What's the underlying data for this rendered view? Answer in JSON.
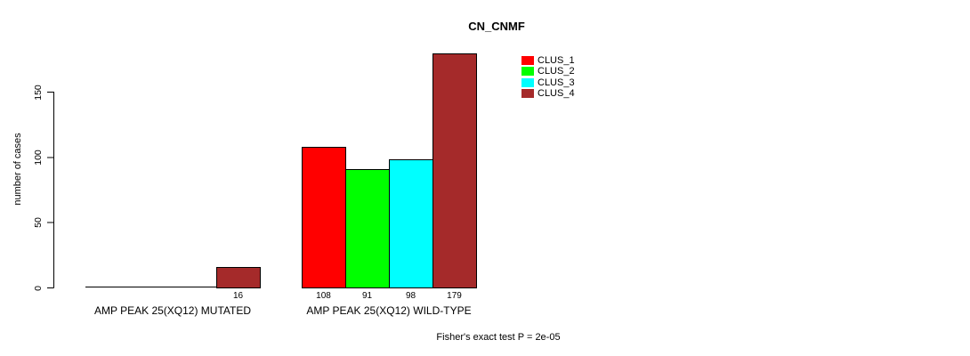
{
  "page": {
    "background_color": "#FFFFFF",
    "text_color": "#000000",
    "axis_color": "#000000"
  },
  "chart_data": {
    "type": "bar",
    "title": "CN_CNMF",
    "xlabel": "",
    "ylabel": "number of cases",
    "ylim": [
      0,
      150
    ],
    "yticks": [
      0,
      50,
      100,
      150
    ],
    "grid": false,
    "legend_position": "top-right-inside",
    "value_label_rule": "nonzero-only",
    "categories": [
      "AMP PEAK 25(XQ12) MUTATED",
      "AMP PEAK 25(XQ12) WILD-TYPE"
    ],
    "series": [
      {
        "name": "CLUS_1",
        "color": "#FF0000",
        "values": [
          0,
          108
        ]
      },
      {
        "name": "CLUS_2",
        "color": "#00FF00",
        "values": [
          0,
          91
        ]
      },
      {
        "name": "CLUS_3",
        "color": "#00FFFF",
        "values": [
          0,
          98
        ]
      },
      {
        "name": "CLUS_4",
        "color": "#A52A2A",
        "values": [
          16,
          179
        ]
      }
    ],
    "annotation": "Fisher's exact test P = 2e-05"
  }
}
